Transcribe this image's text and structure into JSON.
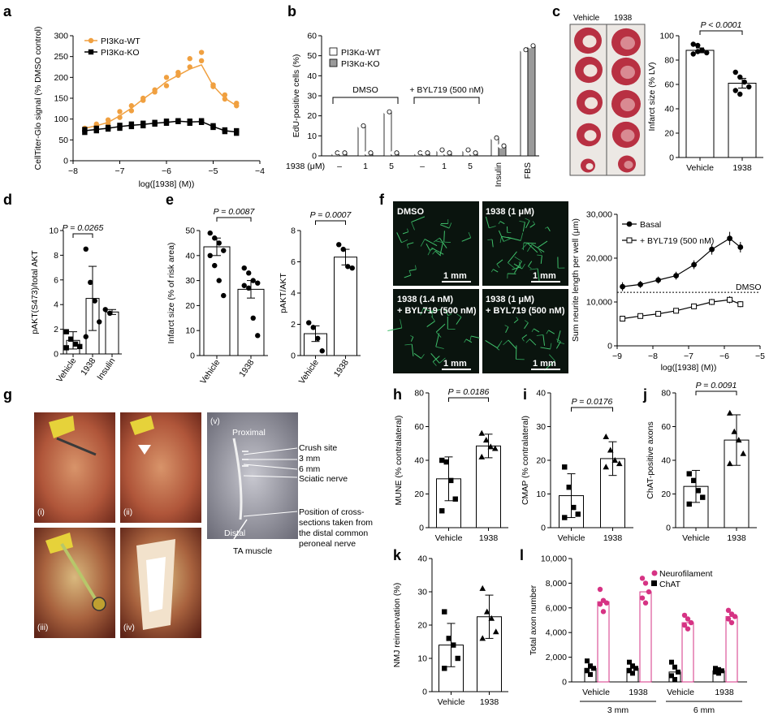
{
  "panels": {
    "a": "a",
    "b": "b",
    "c": "c",
    "d": "d",
    "e": "e",
    "f": "f",
    "g": "g",
    "h": "h",
    "i": "i",
    "j": "j",
    "k": "k",
    "l": "l"
  },
  "chart_data": [
    {
      "id": "a",
      "type": "line",
      "xlabel": "log([1938] (M))",
      "ylabel": "CellTiter-Glo signal (% DMSO control)",
      "xlim": [
        -8,
        -4
      ],
      "ylim": [
        0,
        300
      ],
      "xticks": [
        "−8",
        "−7",
        "−6",
        "−5",
        "−4"
      ],
      "yticks": [
        "0",
        "50",
        "100",
        "150",
        "200",
        "250",
        "300"
      ],
      "legend_position": "top-left",
      "series": [
        {
          "name": "PI3Kα-WT",
          "color": "#f0a040",
          "marker": "circle",
          "points": [
            [
              -7.75,
              72
            ],
            [
              -7.75,
              78
            ],
            [
              -7.5,
              82
            ],
            [
              -7.5,
              88
            ],
            [
              -7.25,
              90
            ],
            [
              -7.25,
              98
            ],
            [
              -7.0,
              104
            ],
            [
              -7.0,
              118
            ],
            [
              -6.75,
              120
            ],
            [
              -6.75,
              132
            ],
            [
              -6.5,
              145
            ],
            [
              -6.5,
              150
            ],
            [
              -6.25,
              165
            ],
            [
              -6.25,
              170
            ],
            [
              -6.0,
              180
            ],
            [
              -6.0,
              200
            ],
            [
              -5.75,
              205
            ],
            [
              -5.75,
              212
            ],
            [
              -5.5,
              225
            ],
            [
              -5.5,
              245
            ],
            [
              -5.25,
              240
            ],
            [
              -5.25,
              260
            ],
            [
              -5.0,
              178
            ],
            [
              -5.0,
              182
            ],
            [
              -4.75,
              148
            ],
            [
              -4.75,
              158
            ],
            [
              -4.5,
              132
            ],
            [
              -4.5,
              138
            ]
          ],
          "fit_x": [
            -7.75,
            -7.5,
            -7.25,
            -7.0,
            -6.75,
            -6.5,
            -6.25,
            -6.0,
            -5.75,
            -5.5,
            -5.25,
            -5.0,
            -4.75,
            -4.5
          ],
          "fit_y": [
            78,
            84,
            92,
            108,
            126,
            148,
            168,
            190,
            205,
            220,
            230,
            180,
            150,
            132
          ]
        },
        {
          "name": "PI3Kα-KO",
          "color": "#000000",
          "marker": "square",
          "points": [
            [
              -7.75,
              68
            ],
            [
              -7.75,
              75
            ],
            [
              -7.5,
              72
            ],
            [
              -7.5,
              78
            ],
            [
              -7.25,
              76
            ],
            [
              -7.25,
              80
            ],
            [
              -7.0,
              78
            ],
            [
              -7.0,
              85
            ],
            [
              -6.75,
              82
            ],
            [
              -6.75,
              88
            ],
            [
              -6.5,
              84
            ],
            [
              -6.5,
              90
            ],
            [
              -6.25,
              88
            ],
            [
              -6.25,
              92
            ],
            [
              -6.0,
              90
            ],
            [
              -6.0,
              95
            ],
            [
              -5.75,
              94
            ],
            [
              -5.75,
              96
            ],
            [
              -5.5,
              90
            ],
            [
              -5.5,
              95
            ],
            [
              -5.25,
              92
            ],
            [
              -5.25,
              96
            ],
            [
              -5.0,
              80
            ],
            [
              -5.0,
              84
            ],
            [
              -4.75,
              70
            ],
            [
              -4.75,
              74
            ],
            [
              -4.5,
              66
            ],
            [
              -4.5,
              72
            ]
          ],
          "fit_x": [
            -7.75,
            -7.5,
            -7.25,
            -7.0,
            -6.75,
            -6.5,
            -6.25,
            -6.0,
            -5.75,
            -5.5,
            -5.25,
            -5.0,
            -4.75,
            -4.5
          ],
          "fit_y": [
            72,
            75,
            78,
            82,
            85,
            87,
            90,
            92,
            95,
            93,
            94,
            82,
            72,
            69
          ]
        }
      ]
    },
    {
      "id": "b",
      "type": "bar",
      "ylabel": "EdU-positive cells (%)",
      "ylim": [
        0,
        60
      ],
      "yticks": [
        "0",
        "10",
        "20",
        "30",
        "40",
        "50",
        "60"
      ],
      "x_prefix": "1938 (μM)",
      "categories": [
        "–",
        "1",
        "5",
        "–",
        "1",
        "5",
        "Insulin",
        "FBS"
      ],
      "group_labels": [
        "DMSO",
        "+ BYL719 (500 nM)"
      ],
      "legend_position": "top-left",
      "series": [
        {
          "name": "PI3Kα-WT",
          "color": "#ffffff",
          "values": [
            1.5,
            15,
            22,
            1.5,
            3,
            3,
            9,
            53
          ]
        },
        {
          "name": "PI3Kα-KO",
          "color": "#9a9a9a",
          "values": [
            1.5,
            1.5,
            1.5,
            1.5,
            1.5,
            1.5,
            5,
            55
          ]
        }
      ]
    },
    {
      "id": "c",
      "type": "bar",
      "ylabel": "Infarct size (% LV)",
      "ylim": [
        0,
        100
      ],
      "yticks": [
        "0",
        "20",
        "40",
        "60",
        "80",
        "100"
      ],
      "categories": [
        "Vehicle",
        "1938"
      ],
      "values": [
        88,
        61
      ],
      "sem": [
        2,
        4
      ],
      "points": [
        [
          93,
          92,
          88,
          86,
          85,
          87
        ],
        [
          70,
          66,
          62,
          58,
          55,
          52
        ]
      ],
      "annotation": "P < 0.0001",
      "image_labels": [
        "Vehicle",
        "1938"
      ]
    },
    {
      "id": "d",
      "type": "bar",
      "ylabel": "pAKT(S473)/total AKT",
      "ylim": [
        0,
        10
      ],
      "yticks": [
        "0",
        "2",
        "4",
        "6",
        "8",
        "10"
      ],
      "categories": [
        "Vehicle",
        "1938",
        "Insulin"
      ],
      "values": [
        1.1,
        4.5,
        3.4
      ],
      "error": [
        0.7,
        2.6,
        0.2
      ],
      "points": [
        [
          1.8,
          1.2,
          0.8,
          0.6,
          0.5
        ],
        [
          8.5,
          5.8,
          4.3,
          2.6,
          1.4
        ],
        [
          3.6,
          3.3
        ]
      ],
      "annotation": "P = 0.0265"
    },
    {
      "id": "e1",
      "type": "bar",
      "ylabel": "Infarct size (% of risk area)",
      "ylim": [
        0,
        50
      ],
      "yticks": [
        "0",
        "10",
        "20",
        "30",
        "40",
        "50"
      ],
      "categories": [
        "Vehicle",
        "1938"
      ],
      "values": [
        43.5,
        26.5
      ],
      "sem": [
        3.5,
        3.5
      ],
      "points": [
        [
          49,
          47,
          45,
          42,
          40,
          36,
          30,
          24
        ],
        [
          35,
          33,
          30,
          29,
          28,
          27,
          15,
          8
        ]
      ],
      "annotation": "P = 0.0087"
    },
    {
      "id": "e2",
      "type": "bar",
      "ylabel": "pAKT/AKT",
      "ylim": [
        0,
        8
      ],
      "yticks": [
        "0",
        "2",
        "4",
        "6",
        "8"
      ],
      "categories": [
        "Vehicle",
        "1938"
      ],
      "values": [
        1.4,
        6.3
      ],
      "sem": [
        0.5,
        0.5
      ],
      "points": [
        [
          2.1,
          1.8,
          1.1,
          0.3
        ],
        [
          7.1,
          6.8,
          5.7,
          5.6
        ]
      ],
      "annotation": "P = 0.0007"
    },
    {
      "id": "f",
      "type": "line",
      "xlabel": "log([1938] (M))",
      "ylabel": "Sum neurite length per well (μm)",
      "xlim": [
        -9,
        -5
      ],
      "ylim": [
        0,
        30000
      ],
      "xticks": [
        "−9",
        "−8",
        "−7",
        "−6",
        "−5"
      ],
      "yticks": [
        "0",
        "10,000",
        "20,000",
        "30,000"
      ],
      "reference_line": {
        "label": "DMSO",
        "value": 12200
      },
      "legend_position": "top-left",
      "image_labels": [
        "DMSO",
        "1938 (1 μM)",
        "1938 (1.4 nM)",
        "+ BYL719 (500 nM)",
        "1938 (1 μM)",
        "+ BYL719 (500 nM)"
      ],
      "scale_bar": "1 mm",
      "series": [
        {
          "name": "Basal",
          "color": "#000000",
          "marker": "filled-circle",
          "x": [
            -8.85,
            -8.35,
            -7.85,
            -7.35,
            -6.85,
            -6.35,
            -5.85,
            -5.55
          ],
          "y": [
            13500,
            14000,
            15000,
            16000,
            18500,
            22000,
            24500,
            22500
          ],
          "err": [
            1000,
            800,
            800,
            900,
            1000,
            1200,
            1500,
            1200
          ]
        },
        {
          "name": "+ BYL719 (500 nM)",
          "color": "#000000",
          "marker": "open-square",
          "x": [
            -8.85,
            -8.35,
            -7.85,
            -7.35,
            -6.85,
            -6.35,
            -5.85,
            -5.55
          ],
          "y": [
            6200,
            6800,
            7300,
            8000,
            9000,
            10000,
            10500,
            9500
          ],
          "err": [
            400,
            400,
            400,
            500,
            600,
            700,
            800,
            700
          ]
        }
      ]
    },
    {
      "id": "h",
      "type": "bar",
      "ylabel": "MUNE (% contralateral)",
      "ylim": [
        0,
        80
      ],
      "yticks": [
        "0",
        "20",
        "40",
        "60",
        "80"
      ],
      "categories": [
        "Vehicle",
        "1938"
      ],
      "values": [
        29,
        48.5
      ],
      "sd": [
        13,
        7
      ],
      "points": [
        [
          40,
          39,
          28,
          17,
          10
        ],
        [
          56,
          52,
          48,
          47,
          42
        ]
      ],
      "annotation": "P = 0.0186"
    },
    {
      "id": "i",
      "type": "bar",
      "ylabel": "CMAP (% contralateral)",
      "ylim": [
        0,
        40
      ],
      "yticks": [
        "0",
        "10",
        "20",
        "30",
        "40"
      ],
      "categories": [
        "Vehicle",
        "1938"
      ],
      "values": [
        9.5,
        20.5
      ],
      "sd": [
        6.5,
        5
      ],
      "points": [
        [
          18,
          12,
          6,
          4,
          3
        ],
        [
          27,
          23,
          20,
          19,
          18
        ]
      ],
      "annotation": "P = 0.0176"
    },
    {
      "id": "j",
      "type": "bar",
      "ylabel": "ChAT-positive axons",
      "ylim": [
        0,
        80
      ],
      "yticks": [
        "0",
        "20",
        "40",
        "60",
        "80"
      ],
      "categories": [
        "Vehicle",
        "1938"
      ],
      "values": [
        24.5,
        52
      ],
      "sd": [
        9.5,
        15
      ],
      "points": [
        [
          32,
          28,
          22,
          18,
          14
        ],
        [
          68,
          57,
          52,
          44,
          38
        ]
      ],
      "annotation": "P = 0.0091"
    },
    {
      "id": "k",
      "type": "bar",
      "ylabel": "NMJ reinnervation (%)",
      "ylim": [
        0,
        40
      ],
      "yticks": [
        "0",
        "10",
        "20",
        "30",
        "40"
      ],
      "categories": [
        "Vehicle",
        "1938"
      ],
      "values": [
        14,
        22.5
      ],
      "sd": [
        6.5,
        6.5
      ],
      "points": [
        [
          24,
          16,
          14,
          10,
          7
        ],
        [
          31,
          24,
          22,
          18,
          16
        ]
      ]
    },
    {
      "id": "l",
      "type": "bar",
      "ylabel": "Total axon number",
      "ylim": [
        0,
        10000
      ],
      "yticks": [
        "0",
        "2,000",
        "4,000",
        "6,000",
        "8,000",
        "10,000"
      ],
      "categories": [
        "Vehicle",
        "1938",
        "Vehicle",
        "1938"
      ],
      "group_labels": [
        "3 mm",
        "6 mm"
      ],
      "legend_position": "top-right",
      "series": [
        {
          "name": "ChAT",
          "color": "#000000",
          "values": [
            1100,
            1100,
            800,
            900
          ],
          "points": [
            [
              1700,
              1300,
              1100,
              900,
              600
            ],
            [
              1600,
              1300,
              1100,
              900,
              700
            ],
            [
              1600,
              1200,
              800,
              500,
              200
            ],
            [
              1100,
              1000,
              900,
              800,
              700
            ]
          ]
        },
        {
          "name": "Neurofilament",
          "color": "#d63384",
          "values": [
            6500,
            7300,
            4800,
            5300
          ],
          "points": [
            [
              7500,
              6600,
              6400,
              6300,
              5700
            ],
            [
              8400,
              8000,
              7300,
              6800,
              6400
            ],
            [
              5400,
              5100,
              4800,
              4600,
              4300
            ],
            [
              5800,
              5500,
              5300,
              5100,
              4800
            ]
          ]
        }
      ]
    }
  ],
  "panel_g": {
    "sub_labels": [
      "(i)",
      "(ii)",
      "(iii)",
      "(iv)",
      "(v)"
    ],
    "anatomy": [
      "Proximal",
      "Distal",
      "TA muscle"
    ],
    "callouts": [
      "Crush site",
      "3 mm",
      "6 mm",
      "Sciatic nerve",
      "Position of cross-",
      "sections taken from",
      "the distal common",
      "peroneal nerve"
    ]
  }
}
